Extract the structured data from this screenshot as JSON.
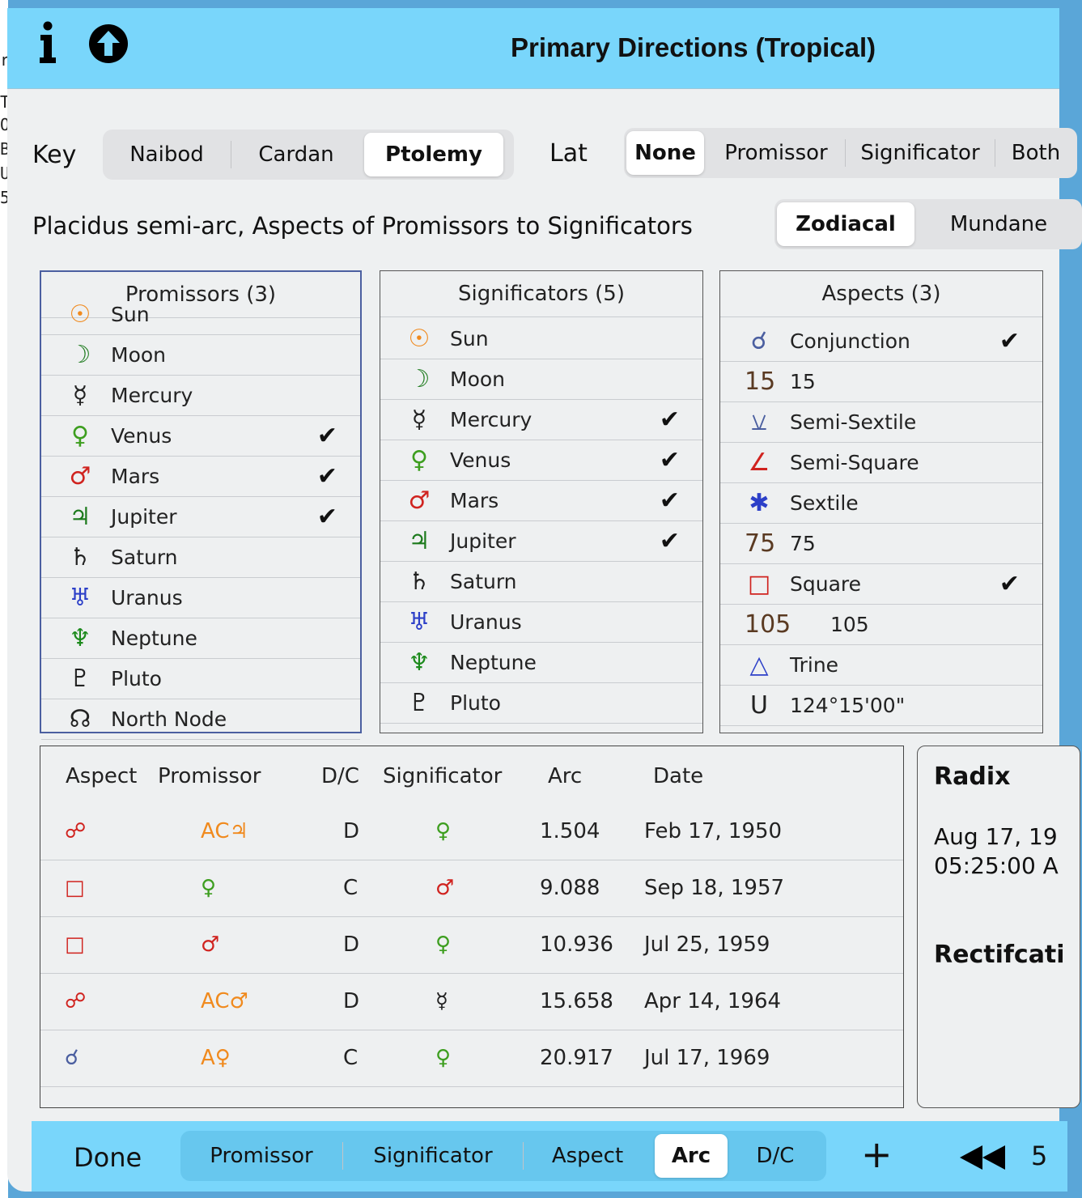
{
  "title": "Primary Directions (Tropical)",
  "key": {
    "label": "Key",
    "options": [
      "Naibod",
      "Cardan",
      "Ptolemy"
    ],
    "selected": "Ptolemy"
  },
  "lat": {
    "label": "Lat",
    "options": [
      "None",
      "Promissor",
      "Significator",
      "Both"
    ],
    "selected": "None"
  },
  "subtitle": "Placidus semi-arc, Aspects of Promissors to Significators",
  "zm": {
    "options": [
      "Zodiacal",
      "Mundane"
    ],
    "selected": "Zodiacal"
  },
  "promissors": {
    "header": "Promissors (3)",
    "items": [
      {
        "sym": "☉",
        "name": "Sun",
        "color": "#f08a1e",
        "checked": false
      },
      {
        "sym": "☽",
        "name": "Moon",
        "color": "#1c7a1c",
        "checked": false
      },
      {
        "sym": "☿",
        "name": "Mercury",
        "color": "#222222",
        "checked": false
      },
      {
        "sym": "♀",
        "name": "Venus",
        "color": "#3d9e1f",
        "checked": true
      },
      {
        "sym": "♂",
        "name": "Mars",
        "color": "#d0231f",
        "checked": true
      },
      {
        "sym": "♃",
        "name": "Jupiter",
        "color": "#1c7a1c",
        "checked": true
      },
      {
        "sym": "♄",
        "name": "Saturn",
        "color": "#222222",
        "checked": false
      },
      {
        "sym": "♅",
        "name": "Uranus",
        "color": "#2c3fc8",
        "checked": false
      },
      {
        "sym": "♆",
        "name": "Neptune",
        "color": "#1c8a1c",
        "checked": false
      },
      {
        "sym": "♇",
        "name": "Pluto",
        "color": "#222222",
        "checked": false
      },
      {
        "sym": "☊",
        "name": "North Node",
        "color": "#222222",
        "checked": false
      }
    ]
  },
  "significators": {
    "header": "Significators (5)",
    "items": [
      {
        "sym": "☉",
        "name": "Sun",
        "color": "#f08a1e",
        "checked": false
      },
      {
        "sym": "☽",
        "name": "Moon",
        "color": "#1c7a1c",
        "checked": false
      },
      {
        "sym": "☿",
        "name": "Mercury",
        "color": "#222222",
        "checked": true
      },
      {
        "sym": "♀",
        "name": "Venus",
        "color": "#3d9e1f",
        "checked": true
      },
      {
        "sym": "♂",
        "name": "Mars",
        "color": "#d0231f",
        "checked": true
      },
      {
        "sym": "♃",
        "name": "Jupiter",
        "color": "#1c7a1c",
        "checked": true
      },
      {
        "sym": "♄",
        "name": "Saturn",
        "color": "#222222",
        "checked": false
      },
      {
        "sym": "♅",
        "name": "Uranus",
        "color": "#2c3fc8",
        "checked": false
      },
      {
        "sym": "♆",
        "name": "Neptune",
        "color": "#1c8a1c",
        "checked": false
      },
      {
        "sym": "♇",
        "name": "Pluto",
        "color": "#222222",
        "checked": false
      }
    ]
  },
  "aspects": {
    "header": "Aspects (3)",
    "items": [
      {
        "sym": "☌",
        "name": "Conjunction",
        "color": "#4b5fa0",
        "checked": true
      },
      {
        "sym": "15",
        "name": "15",
        "color": "#5a3a22",
        "checked": false
      },
      {
        "sym": "⚺",
        "name": "Semi-Sextile",
        "color": "#4b5fa0",
        "checked": false
      },
      {
        "sym": "∠",
        "name": "Semi-Square",
        "color": "#d0231f",
        "checked": false
      },
      {
        "sym": "✱",
        "name": "Sextile",
        "color": "#2c3fc8",
        "checked": false
      },
      {
        "sym": "75",
        "name": "75",
        "color": "#5a3a22",
        "checked": false
      },
      {
        "sym": "□",
        "name": "Square",
        "color": "#d0231f",
        "checked": true
      },
      {
        "sym": "105",
        "name": "105",
        "color": "#5a3a22",
        "checked": false
      },
      {
        "sym": "△",
        "name": "Trine",
        "color": "#2c3fc8",
        "checked": false
      },
      {
        "sym": "U",
        "name": "124°15'00\"",
        "color": "#222222",
        "checked": false
      }
    ]
  },
  "table": {
    "headers": [
      "Aspect",
      "Promissor",
      "D/C",
      "Significator",
      "Arc",
      "Date"
    ],
    "rows": [
      {
        "aspect": "☍",
        "aspect_color": "#d0231f",
        "promissor": "AC♃",
        "promissor_color": "#f08a1e",
        "dc": "D",
        "significator": "♀",
        "significator_color": "#3d9e1f",
        "arc": "1.504",
        "date": "Feb 17, 1950"
      },
      {
        "aspect": "□",
        "aspect_color": "#d0231f",
        "promissor": "♀",
        "promissor_color": "#3d9e1f",
        "dc": "C",
        "significator": "♂",
        "significator_color": "#d0231f",
        "arc": "9.088",
        "date": "Sep 18, 1957"
      },
      {
        "aspect": "□",
        "aspect_color": "#d0231f",
        "promissor": "♂",
        "promissor_color": "#d0231f",
        "dc": "D",
        "significator": "♀",
        "significator_color": "#3d9e1f",
        "arc": "10.936",
        "date": "Jul 25, 1959"
      },
      {
        "aspect": "☍",
        "aspect_color": "#d0231f",
        "promissor": "AC♂",
        "promissor_color": "#f08a1e",
        "dc": "D",
        "significator": "☿",
        "significator_color": "#222222",
        "arc": "15.658",
        "date": "Apr 14, 1964"
      },
      {
        "aspect": "☌",
        "aspect_color": "#4b5fa0",
        "promissor": "A♀",
        "promissor_color": "#f08a1e",
        "dc": "C",
        "significator": "♀",
        "significator_color": "#3d9e1f",
        "arc": "20.917",
        "date": "Jul 17, 1969"
      }
    ]
  },
  "radix": {
    "heading": "Radix",
    "date": "Aug 17, 19",
    "time": "05:25:00 A",
    "rect_heading": "Rectifcati"
  },
  "bottom": {
    "done": "Done",
    "sort_options": [
      "Promissor",
      "Significator",
      "Aspect",
      "Arc",
      "D/C"
    ],
    "selected": "Arc",
    "plus": "+",
    "page": "5"
  },
  "behind_letters": [
    "r",
    "T",
    "O",
    "B",
    "U",
    "5"
  ],
  "colors": {
    "bar": "#79d6fb",
    "sheet": "#eef0f1",
    "selected_panel_border": "#4b5fa0"
  }
}
